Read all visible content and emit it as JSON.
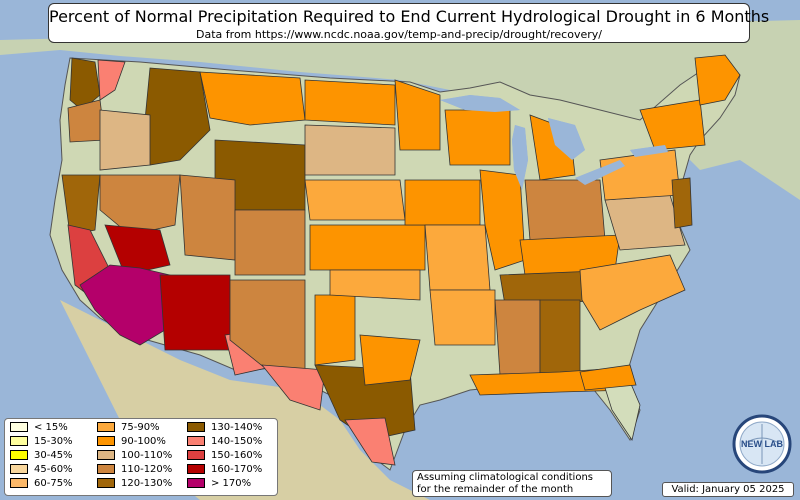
{
  "header": {
    "title": "Percent of Normal Precipitation Required to End Current Hydrological Drought in 6 Months",
    "subtitle": "Data from https://www.ncdc.noaa.gov/temp-and-precip/drought/recovery/"
  },
  "legend": {
    "items": [
      {
        "label": "< 15%",
        "color": "#ffffe0"
      },
      {
        "label": "15-30%",
        "color": "#ffff9e"
      },
      {
        "label": "30-45%",
        "color": "#ffff00"
      },
      {
        "label": "45-60%",
        "color": "#f9d79d"
      },
      {
        "label": "60-75%",
        "color": "#fbb869"
      },
      {
        "label": "75-90%",
        "color": "#fca93c"
      },
      {
        "label": "90-100%",
        "color": "#fd9400"
      },
      {
        "label": "100-110%",
        "color": "#ddb684"
      },
      {
        "label": "110-120%",
        "color": "#cd853f"
      },
      {
        "label": "120-130%",
        "color": "#a0660a"
      },
      {
        "label": "130-140%",
        "color": "#8b5a00"
      },
      {
        "label": "140-150%",
        "color": "#fa8072"
      },
      {
        "label": "150-160%",
        "color": "#dc4040"
      },
      {
        "label": "160-170%",
        "color": "#b40000"
      },
      {
        "label": "> 170%",
        "color": "#b4006a"
      }
    ]
  },
  "note": {
    "line1": "Assuming climatological conditions",
    "line2": "for the remainder of the month"
  },
  "valid_date": "Valid: January 05 2025",
  "logo": {
    "text": "NEW LAB"
  }
}
